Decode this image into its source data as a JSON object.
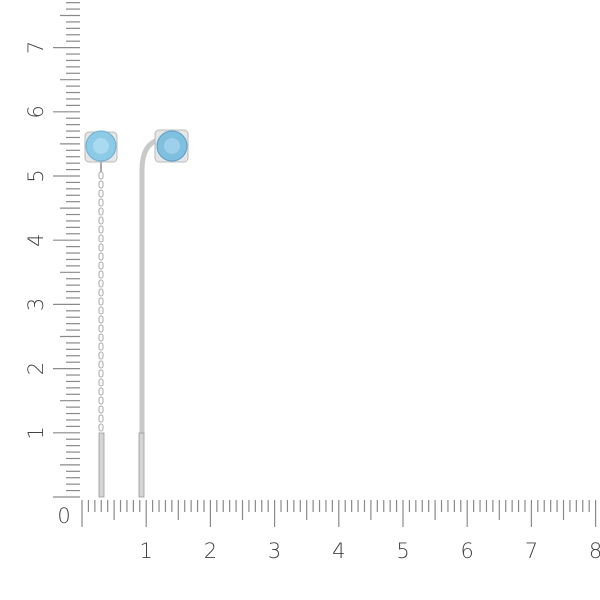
{
  "ruler": {
    "vertical_labels": [
      "1",
      "2",
      "3",
      "4",
      "5",
      "6",
      "7"
    ],
    "horizontal_labels": [
      "0",
      "1",
      "2",
      "3",
      "4",
      "5",
      "6",
      "7",
      "8"
    ],
    "tick_color": "#8a8a8a",
    "label_color": "#444444"
  },
  "product": {
    "description_icon": "earrings-photo",
    "gem_color": "#8ccbe6",
    "metal_color": "#c9c9c9"
  }
}
